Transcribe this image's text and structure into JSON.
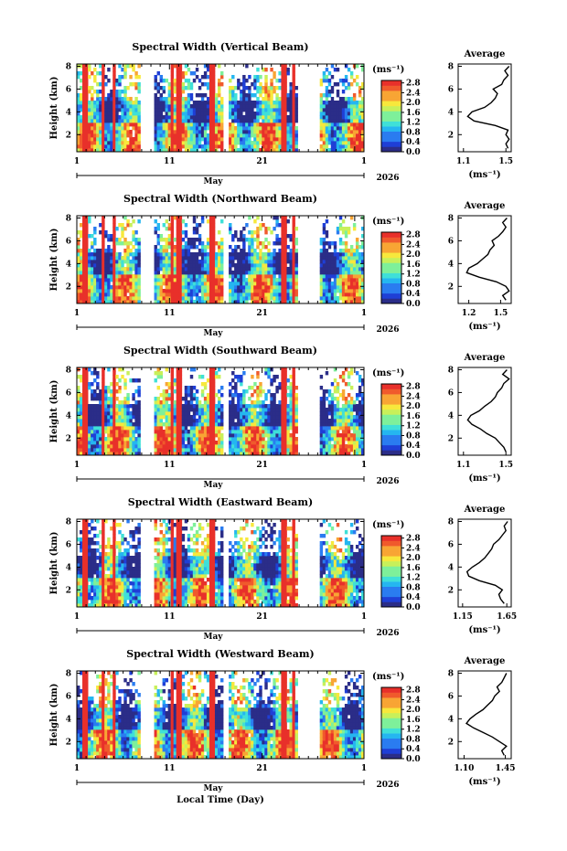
{
  "figure": {
    "xlabel": "Local Time (Day)",
    "month_label": "May",
    "year_label": "2026",
    "day_ticks": [
      "1",
      "11",
      "21",
      "1"
    ],
    "colorbar_unit": "(ms⁻¹)",
    "avg_title": "Average",
    "avg_xlabel": "(ms⁻¹)",
    "ylabel": "Height (km)",
    "y_ticks": [
      "2",
      "4",
      "6",
      "8"
    ]
  },
  "chart_data": [
    {
      "type": "heatmap",
      "title": "Spectral Width (Vertical Beam)",
      "colorbar_ticks": [
        "0.0",
        "0.4",
        "0.8",
        "1.2",
        "1.6",
        "2.0",
        "2.4",
        "2.8"
      ],
      "colorbar_range": [
        0.0,
        2.9
      ],
      "ylim_km": [
        0.5,
        8.2
      ],
      "avg_profile": {
        "xticks": [
          "1.1",
          "1.5"
        ],
        "xlim": [
          1.05,
          1.55
        ],
        "height_km": [
          0.8,
          1.2,
          1.6,
          2.0,
          2.4,
          2.8,
          3.2,
          3.6,
          4.0,
          4.4,
          4.8,
          5.2,
          5.6,
          6.0,
          6.4,
          6.8,
          7.2,
          7.6,
          8.0
        ],
        "value": [
          1.52,
          1.5,
          1.53,
          1.5,
          1.52,
          1.4,
          1.2,
          1.14,
          1.18,
          1.3,
          1.36,
          1.4,
          1.42,
          1.38,
          1.46,
          1.48,
          1.52,
          1.49,
          1.53
        ]
      }
    },
    {
      "type": "heatmap",
      "title": "Spectral Width (Northward Beam)",
      "colorbar_ticks": [
        "0.0",
        "0.4",
        "0.8",
        "1.2",
        "1.6",
        "2.0",
        "2.4",
        "2.8"
      ],
      "colorbar_range": [
        0.0,
        2.9
      ],
      "ylim_km": [
        0.5,
        8.2
      ],
      "avg_profile": {
        "xticks": [
          "1.2",
          "1.5"
        ],
        "xlim": [
          1.1,
          1.6
        ],
        "height_km": [
          0.8,
          1.2,
          1.6,
          2.0,
          2.4,
          2.8,
          3.2,
          3.6,
          4.0,
          4.4,
          4.8,
          5.2,
          5.6,
          6.0,
          6.4,
          6.8,
          7.2,
          7.6,
          8.0
        ],
        "value": [
          1.55,
          1.52,
          1.58,
          1.55,
          1.46,
          1.3,
          1.18,
          1.2,
          1.28,
          1.33,
          1.38,
          1.4,
          1.44,
          1.42,
          1.48,
          1.52,
          1.55,
          1.52,
          1.56
        ]
      }
    },
    {
      "type": "heatmap",
      "title": "Spectral Width (Southward Beam)",
      "colorbar_ticks": [
        "0.0",
        "0.4",
        "0.8",
        "1.2",
        "1.6",
        "2.0",
        "2.4",
        "2.8"
      ],
      "colorbar_range": [
        0.0,
        2.9
      ],
      "ylim_km": [
        0.5,
        8.2
      ],
      "avg_profile": {
        "xticks": [
          "1.1",
          "1.5"
        ],
        "xlim": [
          1.05,
          1.55
        ],
        "height_km": [
          0.8,
          1.2,
          1.6,
          2.0,
          2.4,
          2.8,
          3.2,
          3.6,
          4.0,
          4.4,
          4.8,
          5.2,
          5.6,
          6.0,
          6.4,
          6.8,
          7.2,
          7.6,
          8.0
        ],
        "value": [
          1.5,
          1.48,
          1.44,
          1.4,
          1.32,
          1.26,
          1.18,
          1.14,
          1.17,
          1.25,
          1.3,
          1.36,
          1.4,
          1.42,
          1.46,
          1.48,
          1.53,
          1.47,
          1.51
        ]
      }
    },
    {
      "type": "heatmap",
      "title": "Spectral Width (Eastward Beam)",
      "colorbar_ticks": [
        "0.0",
        "0.4",
        "0.8",
        "1.2",
        "1.6",
        "2.0",
        "2.4",
        "2.8"
      ],
      "colorbar_range": [
        0.0,
        2.9
      ],
      "ylim_km": [
        0.5,
        8.2
      ],
      "avg_profile": {
        "xticks": [
          "1.15",
          "1.65"
        ],
        "xlim": [
          1.1,
          1.7
        ],
        "height_km": [
          0.8,
          1.2,
          1.6,
          2.0,
          2.4,
          2.8,
          3.2,
          3.6,
          4.0,
          4.4,
          4.8,
          5.2,
          5.6,
          6.0,
          6.4,
          6.8,
          7.2,
          7.6,
          8.0
        ],
        "value": [
          1.62,
          1.58,
          1.56,
          1.6,
          1.52,
          1.34,
          1.22,
          1.2,
          1.26,
          1.34,
          1.4,
          1.44,
          1.48,
          1.5,
          1.56,
          1.6,
          1.64,
          1.62,
          1.66
        ]
      }
    },
    {
      "type": "heatmap",
      "title": "Spectral Width (Westward Beam)",
      "colorbar_ticks": [
        "0.0",
        "0.4",
        "0.8",
        "1.2",
        "1.6",
        "2.0",
        "2.4",
        "2.8"
      ],
      "colorbar_range": [
        0.0,
        2.9
      ],
      "ylim_km": [
        0.5,
        8.2
      ],
      "avg_profile": {
        "xticks": [
          "1.10",
          "1.45"
        ],
        "xlim": [
          1.05,
          1.5
        ],
        "height_km": [
          0.8,
          1.2,
          1.6,
          2.0,
          2.4,
          2.8,
          3.2,
          3.6,
          4.0,
          4.4,
          4.8,
          5.2,
          5.6,
          6.0,
          6.4,
          6.8,
          7.2,
          7.6,
          8.0
        ],
        "value": [
          1.44,
          1.42,
          1.46,
          1.4,
          1.34,
          1.26,
          1.18,
          1.12,
          1.15,
          1.2,
          1.26,
          1.3,
          1.34,
          1.36,
          1.4,
          1.38,
          1.42,
          1.44,
          1.46
        ]
      }
    }
  ],
  "colors": {
    "missing": "#ffffff",
    "colormap": [
      "#2b2d88",
      "#1f3fd6",
      "#2a7cf0",
      "#25b6f0",
      "#3fe0d8",
      "#7ef09a",
      "#c8f05a",
      "#f7e83c",
      "#f8a534",
      "#f05a2c",
      "#e8302a"
    ]
  }
}
